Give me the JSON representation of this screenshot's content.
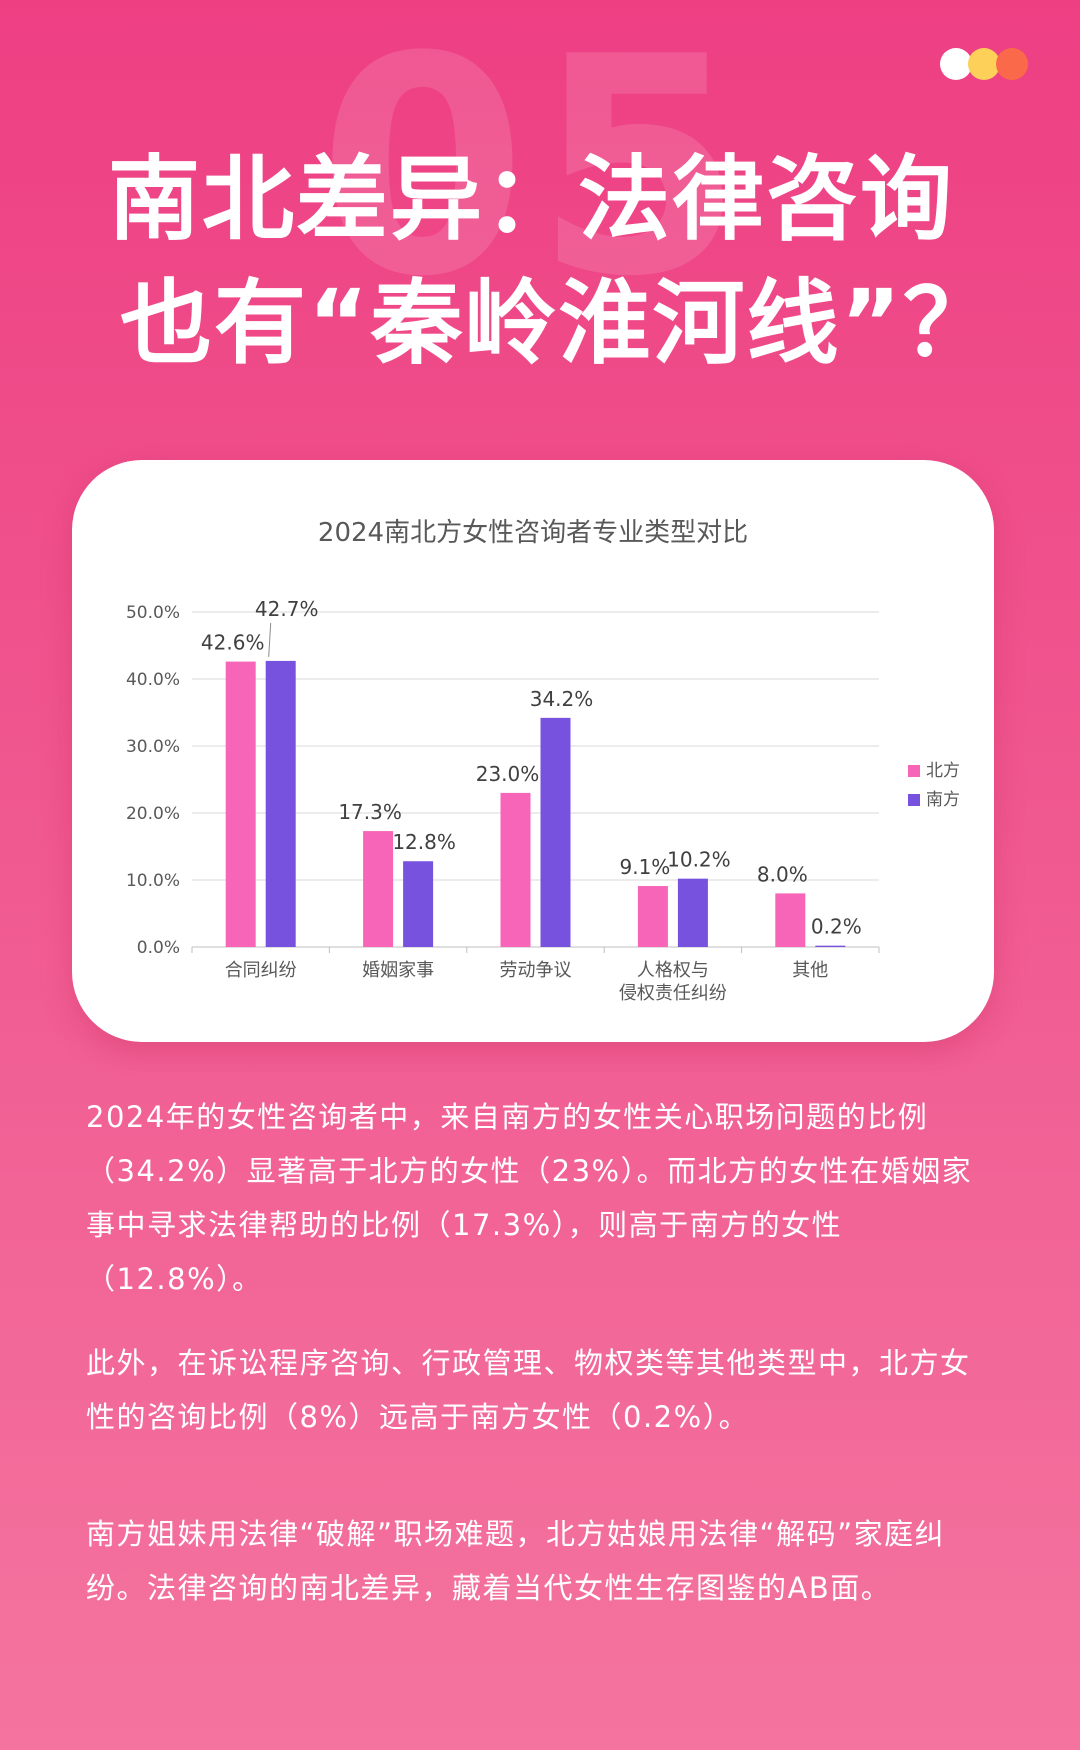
{
  "header": {
    "bg_number": "05",
    "title_line1": "南北差异：法律咨询",
    "title_line2": "也有“秦岭淮河线”？"
  },
  "decor": {
    "dot_colors": [
      "#ffffff",
      "#fdd05a",
      "#fa6a4a"
    ]
  },
  "chart_data": {
    "type": "bar",
    "title": "2024南北方女性咨询者专业类型对比",
    "categories": [
      "合同纠纷",
      "婚姻家事",
      "劳动争议",
      "人格权与\n侵权责任纠纷",
      "其他"
    ],
    "series": [
      {
        "name": "北方",
        "color": "#f765b8",
        "values": [
          42.6,
          17.3,
          23.0,
          9.1,
          8.0
        ]
      },
      {
        "name": "南方",
        "color": "#7752de",
        "values": [
          42.7,
          12.8,
          34.2,
          10.2,
          0.2
        ]
      }
    ],
    "yticks": [
      "0.0%",
      "10.0%",
      "20.0%",
      "30.0%",
      "40.0%",
      "50.0%"
    ],
    "ylim": [
      0,
      50
    ],
    "grid": true,
    "legend_position": "right"
  },
  "paragraphs": [
    "2024年的女性咨询者中，来自南方的女性关心职场问题的比例（34.2%）显著高于北方的女性（23%）。而北方的女性在婚姻家事中寻求法律帮助的比例（17.3%），则高于南方的女性（12.8%）。",
    "此外，在诉讼程序咨询、行政管理、物权类等其他类型中，北方女性的咨询比例（8%）远高于南方女性（0.2%）。",
    "南方姐妹用法律“破解”职场难题，北方姑娘用法律“解码”家庭纠纷。法律咨询的南北差异，藏着当代女性生存图鉴的AB面。"
  ]
}
